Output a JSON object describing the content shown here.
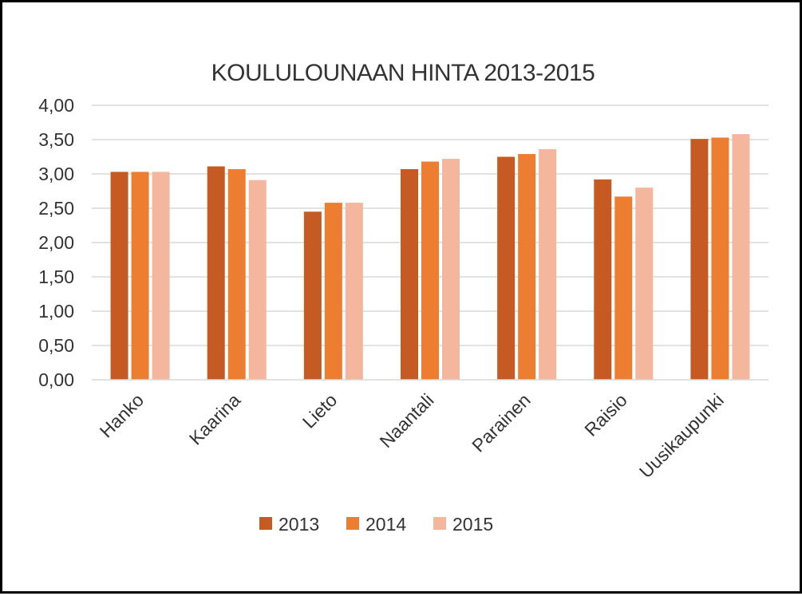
{
  "chart_data": {
    "type": "bar",
    "title": "KOULULOUNAAN HINTA 2013-2015",
    "xlabel": "",
    "ylabel": "",
    "categories": [
      "Hanko",
      "Kaarina",
      "Lieto",
      "Naantali",
      "Parainen",
      "Raisio",
      "Uusikaupunki"
    ],
    "series": [
      {
        "name": "2013",
        "color": "#c55a22",
        "values": [
          3.03,
          3.11,
          2.45,
          3.07,
          3.25,
          2.92,
          3.51
        ]
      },
      {
        "name": "2014",
        "color": "#ed7d31",
        "values": [
          3.03,
          3.07,
          2.58,
          3.18,
          3.29,
          2.67,
          3.53
        ]
      },
      {
        "name": "2015",
        "color": "#f4b69c",
        "values": [
          3.03,
          2.91,
          2.58,
          3.22,
          3.36,
          2.8,
          3.58
        ]
      }
    ],
    "ylim": [
      0,
      4
    ],
    "yticks": [
      "0,00",
      "0,50",
      "1,00",
      "1,50",
      "2,00",
      "2,50",
      "3,00",
      "3,50",
      "4,00"
    ],
    "ytick_values": [
      0,
      0.5,
      1,
      1.5,
      2,
      2.5,
      3,
      3.5,
      4
    ],
    "grid": true,
    "gridline_color": "#d9d9d9",
    "legend_position": "bottom"
  }
}
